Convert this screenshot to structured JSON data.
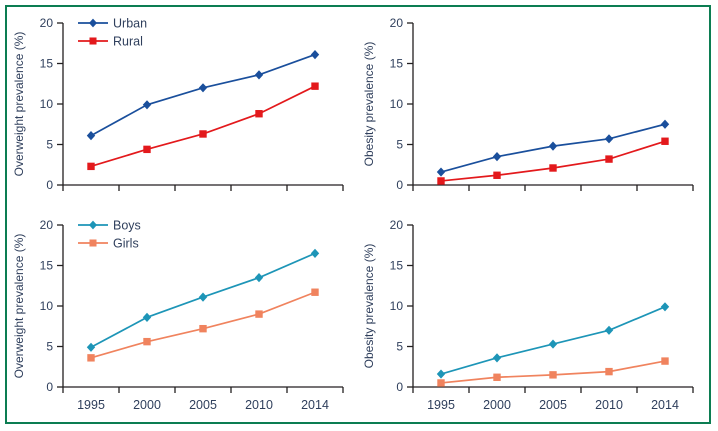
{
  "figure": {
    "description": "Four line charts: overweight and obesity prevalence trends 1995-2014 by residence (Urban/Rural) and by sex (Boys/Girls)",
    "border_color": "#0c7d52",
    "background": "#ffffff",
    "text_color": "#2f3f5c",
    "axis_color": "#231f20"
  },
  "chart_data": [
    {
      "id": "overweight-by-residence",
      "type": "line",
      "position": "top-left",
      "title": "",
      "xlabel": "",
      "ylabel": "Overweight prevalence (%)",
      "x": [
        1995,
        2000,
        2005,
        2010,
        2014
      ],
      "x_tick_labels": [
        "1995",
        "2000",
        "2005",
        "2010",
        "2014"
      ],
      "show_x_labels": false,
      "show_legend": true,
      "legend_position": "top-left-inside",
      "ylim": [
        0,
        20
      ],
      "yticks": [
        0,
        5,
        10,
        15,
        20
      ],
      "grid": false,
      "series": [
        {
          "name": "Urban",
          "marker": "diamond",
          "color": "#1a4f9c",
          "values": [
            6.1,
            9.9,
            12.0,
            13.6,
            16.1
          ]
        },
        {
          "name": "Rural",
          "marker": "square",
          "color": "#e3191c",
          "values": [
            2.3,
            4.4,
            6.3,
            8.8,
            12.2
          ]
        }
      ]
    },
    {
      "id": "obesity-by-residence",
      "type": "line",
      "position": "top-right",
      "title": "",
      "xlabel": "",
      "ylabel": "Obesity prevalence (%)",
      "x": [
        1995,
        2000,
        2005,
        2010,
        2014
      ],
      "x_tick_labels": [
        "1995",
        "2000",
        "2005",
        "2010",
        "2014"
      ],
      "show_x_labels": false,
      "show_legend": false,
      "ylim": [
        0,
        20
      ],
      "yticks": [
        0,
        5,
        10,
        15,
        20
      ],
      "grid": false,
      "series": [
        {
          "name": "Urban",
          "marker": "diamond",
          "color": "#1a4f9c",
          "values": [
            1.6,
            3.5,
            4.8,
            5.7,
            7.5
          ]
        },
        {
          "name": "Rural",
          "marker": "square",
          "color": "#e3191c",
          "values": [
            0.5,
            1.2,
            2.1,
            3.2,
            5.4
          ]
        }
      ]
    },
    {
      "id": "overweight-by-sex",
      "type": "line",
      "position": "bottom-left",
      "title": "",
      "xlabel": "",
      "ylabel": "Overweight prevalence (%)",
      "x": [
        1995,
        2000,
        2005,
        2010,
        2014
      ],
      "x_tick_labels": [
        "1995",
        "2000",
        "2005",
        "2010",
        "2014"
      ],
      "show_x_labels": true,
      "show_legend": true,
      "legend_position": "top-left-inside",
      "ylim": [
        0,
        20
      ],
      "yticks": [
        0,
        5,
        10,
        15,
        20
      ],
      "grid": false,
      "series": [
        {
          "name": "Boys",
          "marker": "diamond",
          "color": "#1d95b7",
          "values": [
            4.9,
            8.6,
            11.1,
            13.5,
            16.5
          ]
        },
        {
          "name": "Girls",
          "marker": "square",
          "color": "#f0835e",
          "values": [
            3.6,
            5.6,
            7.2,
            9.0,
            11.7
          ]
        }
      ]
    },
    {
      "id": "obesity-by-sex",
      "type": "line",
      "position": "bottom-right",
      "title": "",
      "xlabel": "",
      "ylabel": "Obesity prevalence (%)",
      "x": [
        1995,
        2000,
        2005,
        2010,
        2014
      ],
      "x_tick_labels": [
        "1995",
        "2000",
        "2005",
        "2010",
        "2014"
      ],
      "show_x_labels": true,
      "show_legend": false,
      "ylim": [
        0,
        20
      ],
      "yticks": [
        0,
        5,
        10,
        15,
        20
      ],
      "grid": false,
      "series": [
        {
          "name": "Boys",
          "marker": "diamond",
          "color": "#1d95b7",
          "values": [
            1.6,
            3.6,
            5.3,
            7.0,
            9.9
          ]
        },
        {
          "name": "Girls",
          "marker": "square",
          "color": "#f0835e",
          "values": [
            0.5,
            1.2,
            1.5,
            1.9,
            3.2
          ]
        }
      ]
    }
  ]
}
